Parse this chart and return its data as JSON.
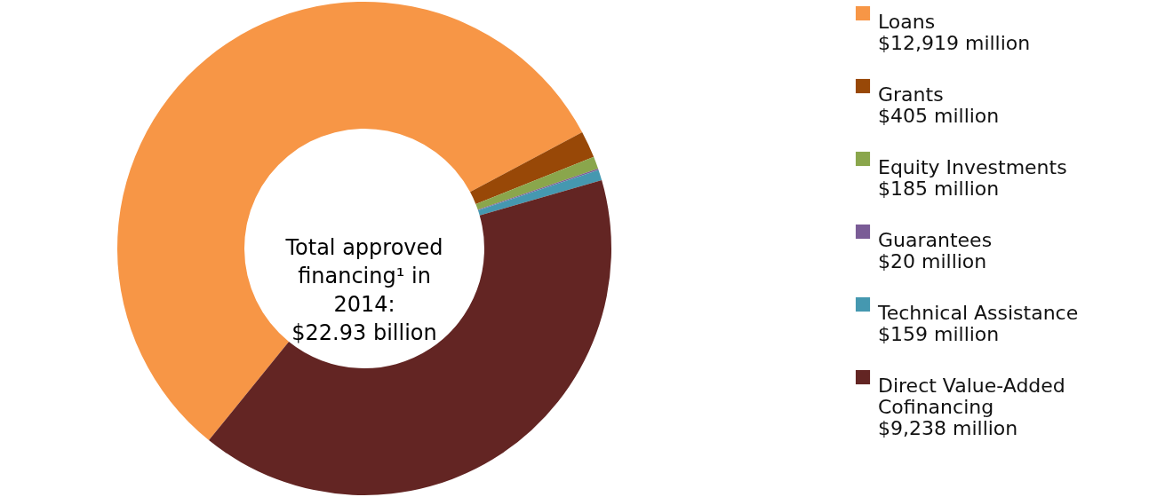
{
  "chart_data": {
    "type": "donut",
    "title": "Total approved financing¹ in 2014: $22.93 billion",
    "categories": [
      "Loans",
      "Grants",
      "Equity Investments",
      "Guarantees",
      "Technical Assistance",
      "Direct Value-Added Cofinancing"
    ],
    "values": [
      12919,
      405,
      185,
      20,
      159,
      9238
    ],
    "colors": [
      "#f79646",
      "#984807",
      "#8aa64c",
      "#7a5c96",
      "#4598b0",
      "#632523"
    ],
    "value_labels": [
      "$12,919 million",
      "$405 million",
      "$185 million",
      "$20 million",
      "$159 million",
      "$9,238 million"
    ],
    "legend": "right"
  }
}
